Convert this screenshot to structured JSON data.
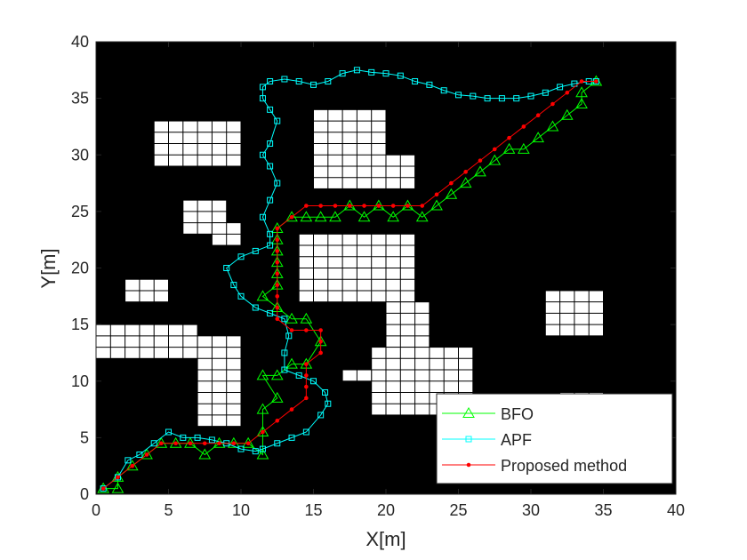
{
  "chart_data": {
    "type": "line",
    "xlabel": "X[m]",
    "ylabel": "Y[m]",
    "xlim": [
      0,
      40
    ],
    "ylim": [
      0,
      40
    ],
    "xticks": [
      0,
      5,
      10,
      15,
      20,
      25,
      30,
      35,
      40
    ],
    "yticks": [
      0,
      5,
      10,
      15,
      20,
      25,
      30,
      35,
      40
    ],
    "grid": false,
    "legend": "southeast",
    "background": "#000000",
    "obstacle_color": "#ffffff",
    "obstacles": [
      [
        4,
        29,
        10,
        33
      ],
      [
        15,
        27,
        20,
        34
      ],
      [
        20,
        27,
        22,
        30
      ],
      [
        6,
        23,
        9,
        26
      ],
      [
        8,
        22,
        10,
        24
      ],
      [
        2,
        17,
        5,
        19
      ],
      [
        14,
        17,
        22,
        23
      ],
      [
        0,
        12,
        7,
        15
      ],
      [
        7,
        6,
        10,
        14
      ],
      [
        20,
        12,
        23,
        17
      ],
      [
        19,
        7,
        26,
        13
      ],
      [
        17,
        10,
        19,
        11
      ],
      [
        31,
        14,
        35,
        18
      ],
      [
        32,
        8,
        35,
        9
      ]
    ],
    "series": [
      {
        "name": "BFO",
        "color": "#00ff00",
        "marker": "triangle",
        "x": [
          0.5,
          1.5,
          1.5,
          2.5,
          3.5,
          4.5,
          5.5,
          6.5,
          7.5,
          8.5,
          9.5,
          10.5,
          11.5,
          11.5,
          11.5,
          12.5,
          11.5,
          12.5,
          13.5,
          14.5,
          15.5,
          14.5,
          13.5,
          12.5,
          11.5,
          12.5,
          12.5,
          12.5,
          12.5,
          12.5,
          12.5,
          13.5,
          14.5,
          15.5,
          16.5,
          17.5,
          18.5,
          19.5,
          20.5,
          21.5,
          22.5,
          23.5,
          24.5,
          25.5,
          26.5,
          27.5,
          28.5,
          29.5,
          30.5,
          31.5,
          32.5,
          33.5,
          33.5,
          34.5
        ],
        "values": [
          0.5,
          0.5,
          1.5,
          2.5,
          3.5,
          4.5,
          4.5,
          4.5,
          3.5,
          4.5,
          4.5,
          4.5,
          3.5,
          5.5,
          7.5,
          8.5,
          10.5,
          10.5,
          11.5,
          11.5,
          13.5,
          15.5,
          15.5,
          16.5,
          17.5,
          18.5,
          19.5,
          20.5,
          21.5,
          22.5,
          23.5,
          24.5,
          24.5,
          24.5,
          24.5,
          25.5,
          24.5,
          25.5,
          24.5,
          25.5,
          24.5,
          25.5,
          26.5,
          27.5,
          28.5,
          29.5,
          30.5,
          30.5,
          31.5,
          32.5,
          33.5,
          34.5,
          35.5,
          36.5
        ]
      },
      {
        "name": "APF",
        "color": "#00ffff",
        "marker": "square",
        "x": [
          0.5,
          1.5,
          2.2,
          3,
          4,
          5,
          6,
          7,
          8,
          9,
          10,
          11,
          11.5,
          12.5,
          13.5,
          14.5,
          15.5,
          16,
          15.8,
          15,
          14,
          13,
          13,
          13.3,
          13,
          12,
          11,
          10,
          9.5,
          9,
          10,
          11,
          12,
          12,
          11.5,
          12,
          12.5,
          12,
          11.5,
          12,
          12.5,
          12,
          11.5,
          11.5,
          12,
          13,
          14,
          15,
          16,
          17,
          18,
          19,
          20,
          21,
          22,
          23,
          24,
          25,
          26,
          27,
          28,
          29,
          30,
          31,
          32,
          33,
          34,
          34.5
        ],
        "values": [
          0.5,
          1.5,
          3,
          3.5,
          4.5,
          5.5,
          5,
          5,
          4.8,
          4.5,
          4,
          3.8,
          4,
          4.5,
          5,
          5.5,
          7,
          8,
          9,
          10,
          10.5,
          11,
          12.5,
          14,
          15.5,
          16,
          16.5,
          17.5,
          18.5,
          20,
          21,
          21.5,
          22,
          23,
          24.5,
          26,
          27.5,
          29,
          30,
          31,
          33,
          34,
          35,
          36,
          36.5,
          36.7,
          36.5,
          36.2,
          36.5,
          37.2,
          37.5,
          37.3,
          37.2,
          37,
          36.5,
          36.2,
          35.7,
          35.3,
          35.2,
          35,
          35,
          35,
          35.2,
          35.5,
          36,
          36.3,
          36.5,
          36.5
        ]
      },
      {
        "name": "Proposed method",
        "color": "#ff0000",
        "marker": "dot",
        "x": [
          0.5,
          1.5,
          2.5,
          3.5,
          4.5,
          5.5,
          6.5,
          7.5,
          8.5,
          9.5,
          10.5,
          11.5,
          12.5,
          13.5,
          14.5,
          14.5,
          14.5,
          14.5,
          15.5,
          15.5,
          15.5,
          14.5,
          13.5,
          12.5,
          12.5,
          12.5,
          12.5,
          12.5,
          12.5,
          12.5,
          12.5,
          12.5,
          13.5,
          14.5,
          15.5,
          16.5,
          17.5,
          18.5,
          19.5,
          20.5,
          21.5,
          22.5,
          23.5,
          24.5,
          25.5,
          26.5,
          27.5,
          28.5,
          29.5,
          30.5,
          31.5,
          32.5,
          33.5,
          34.5
        ],
        "values": [
          0.5,
          1.5,
          2.5,
          3.5,
          4.5,
          4.5,
          4.5,
          4.5,
          4.5,
          4.5,
          4.5,
          5.5,
          6.5,
          7.5,
          8.5,
          9.5,
          10.5,
          11.5,
          12.5,
          13.5,
          14.5,
          14.5,
          14.5,
          15.5,
          16.5,
          17.5,
          18.5,
          19.5,
          20.5,
          21.5,
          22.5,
          23.5,
          24.5,
          25.5,
          25.5,
          25.5,
          25.5,
          25.5,
          25.5,
          25.5,
          25.5,
          25.5,
          26.5,
          27.5,
          28.5,
          29.5,
          30.5,
          31.5,
          32.5,
          33.5,
          34.5,
          35.5,
          36.5,
          36.5
        ]
      }
    ]
  }
}
